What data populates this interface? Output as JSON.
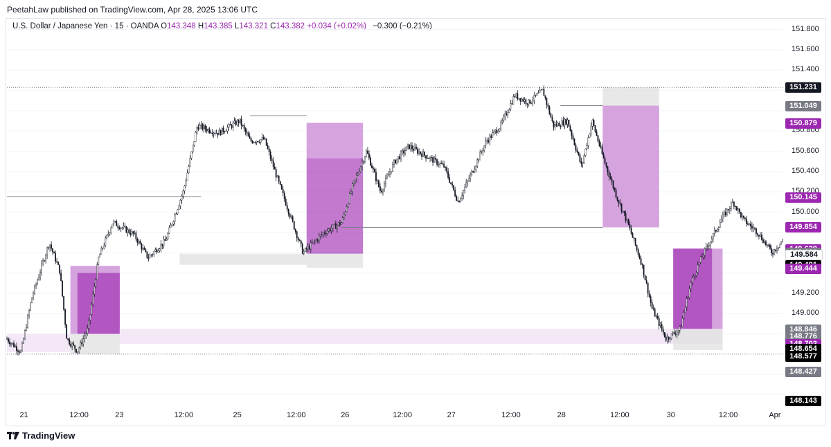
{
  "header": {
    "publisher": "PeetahLaw published on TradingView.com, Apr 28, 2025 13:06 UTC"
  },
  "legend": {
    "symbol": "U.S. Dollar / Japanese Yen · 15 · OANDA",
    "open_label": "O",
    "open": "143.348",
    "high_label": "H",
    "high": "143.385",
    "low_label": "L",
    "low": "143.321",
    "close_label": "C",
    "close": "143.382",
    "change": "+0.034 (+0.02%)",
    "change2": "−0.300 (−0.21%)"
  },
  "footer": {
    "brand": "TradingView",
    "brand_icon": "tradingview-logo-icon"
  },
  "colors": {
    "candle": "#131722",
    "purple": "#9c27b0",
    "purple_light": "#ce93d8",
    "gray_zone": "#e0e0e0",
    "grid": "#f0f3fa"
  },
  "chart_data": {
    "type": "candlestick",
    "ylim": [
      148.08,
      151.9
    ],
    "price_ticks": [
      "151.800",
      "151.600",
      "151.400",
      "150.800",
      "150.600",
      "150.400",
      "150.200",
      "150.000",
      "149.200",
      "149.000"
    ],
    "date_ticks": [
      "21",
      "12:00",
      "23",
      "12:00",
      "25",
      "12:00",
      "26",
      "12:00",
      "27",
      "12:00",
      "28",
      "12:00",
      "30",
      "12:00",
      "Apr"
    ],
    "price_badges": [
      {
        "value": "151.231",
        "color": "#131722"
      },
      {
        "value": "151.049",
        "color": "#787b86"
      },
      {
        "value": "150.879",
        "color": "#9c27b0"
      },
      {
        "value": "150.145",
        "color": "#9c27b0"
      },
      {
        "value": "149.854",
        "color": "#9c27b0"
      },
      {
        "value": "149.638",
        "color": "#9c27b0"
      },
      {
        "value": "149.603",
        "color": "#787b86"
      },
      {
        "value": "149.584",
        "color": "#ffffff",
        "text": "#131722"
      },
      {
        "value": "149.481",
        "color": "#000000"
      },
      {
        "value": "149.444",
        "color": "#9c27b0"
      },
      {
        "value": "148.846",
        "color": "#787b86"
      },
      {
        "value": "148.776",
        "color": "#787b86"
      },
      {
        "value": "148.702",
        "color": "#9c27b0"
      },
      {
        "value": "148.654",
        "color": "#000000"
      },
      {
        "value": "148.577",
        "color": "#000000"
      },
      {
        "value": "148.427",
        "color": "#787b86"
      },
      {
        "value": "148.143",
        "color": "#000000"
      }
    ],
    "price_path": [
      [
        0,
        148.75
      ],
      [
        0.02,
        148.62
      ],
      [
        0.035,
        149.15
      ],
      [
        0.06,
        149.7
      ],
      [
        0.075,
        149.42
      ],
      [
        0.085,
        148.75
      ],
      [
        0.1,
        148.63
      ],
      [
        0.115,
        148.85
      ],
      [
        0.13,
        149.55
      ],
      [
        0.15,
        149.9
      ],
      [
        0.18,
        149.78
      ],
      [
        0.2,
        149.55
      ],
      [
        0.225,
        149.72
      ],
      [
        0.25,
        150.2
      ],
      [
        0.27,
        150.85
      ],
      [
        0.3,
        150.78
      ],
      [
        0.33,
        150.9
      ],
      [
        0.345,
        150.7
      ],
      [
        0.365,
        150.72
      ],
      [
        0.385,
        150.3
      ],
      [
        0.405,
        149.9
      ],
      [
        0.42,
        149.6
      ],
      [
        0.45,
        149.8
      ],
      [
        0.475,
        149.9
      ],
      [
        0.49,
        150.25
      ],
      [
        0.51,
        150.6
      ],
      [
        0.53,
        150.2
      ],
      [
        0.55,
        150.5
      ],
      [
        0.57,
        150.65
      ],
      [
        0.595,
        150.55
      ],
      [
        0.62,
        150.45
      ],
      [
        0.64,
        150.1
      ],
      [
        0.66,
        150.4
      ],
      [
        0.68,
        150.7
      ],
      [
        0.7,
        150.85
      ],
      [
        0.72,
        151.15
      ],
      [
        0.74,
        151.08
      ],
      [
        0.76,
        151.2
      ],
      [
        0.775,
        150.85
      ],
      [
        0.795,
        150.9
      ],
      [
        0.815,
        150.45
      ],
      [
        0.83,
        150.9
      ],
      [
        0.845,
        150.55
      ],
      [
        0.865,
        150.15
      ],
      [
        0.88,
        149.9
      ],
      [
        0.9,
        149.5
      ],
      [
        0.915,
        149.05
      ],
      [
        0.935,
        148.75
      ],
      [
        0.955,
        148.85
      ],
      [
        0.97,
        149.3
      ],
      [
        0.985,
        149.55
      ],
      [
        1.0,
        149.75
      ],
      [
        1.015,
        149.95
      ],
      [
        1.03,
        150.1
      ],
      [
        1.045,
        149.92
      ],
      [
        1.065,
        149.8
      ],
      [
        1.085,
        149.6
      ],
      [
        1.1,
        149.72
      ]
    ],
    "horizontal_lines": [
      {
        "y": 151.23,
        "x0": 0.0,
        "x1": 1.1,
        "style": "dotted"
      },
      {
        "y": 148.6,
        "x0": 0.0,
        "x1": 1.1,
        "style": "dotted"
      },
      {
        "y": 150.15,
        "x0": 0.0,
        "x1": 0.275,
        "style": "solid"
      },
      {
        "y": 150.95,
        "x0": 0.345,
        "x1": 0.425,
        "style": "solid"
      },
      {
        "y": 149.85,
        "x0": 0.475,
        "x1": 0.845,
        "style": "solid"
      },
      {
        "y": 151.05,
        "x0": 0.785,
        "x1": 0.845,
        "style": "solid"
      }
    ],
    "zones": [
      {
        "x0": 0.0,
        "x1": 0.09,
        "y0": 148.62,
        "y1": 148.8,
        "kind": "light"
      },
      {
        "x0": 0.09,
        "x1": 0.16,
        "y0": 148.6,
        "y1": 148.8,
        "kind": "gray"
      },
      {
        "x0": 0.09,
        "x1": 0.16,
        "y0": 148.8,
        "y1": 149.47,
        "kind": "mid"
      },
      {
        "x0": 0.1,
        "x1": 0.16,
        "y0": 148.8,
        "y1": 149.4,
        "kind": "dark"
      },
      {
        "x0": 0.16,
        "x1": 1.015,
        "y0": 148.7,
        "y1": 148.85,
        "kind": "light"
      },
      {
        "x0": 0.245,
        "x1": 0.425,
        "y0": 149.48,
        "y1": 149.59,
        "kind": "gray"
      },
      {
        "x0": 0.425,
        "x1": 0.505,
        "y0": 149.45,
        "y1": 149.59,
        "kind": "gray"
      },
      {
        "x0": 0.425,
        "x1": 0.505,
        "y0": 150.53,
        "y1": 150.88,
        "kind": "mid"
      },
      {
        "x0": 0.425,
        "x1": 0.505,
        "y0": 149.59,
        "y1": 150.53,
        "kind": "dark"
      },
      {
        "x0": 0.845,
        "x1": 0.925,
        "y0": 151.05,
        "y1": 151.23,
        "kind": "gray"
      },
      {
        "x0": 0.845,
        "x1": 0.925,
        "y0": 149.85,
        "y1": 151.05,
        "kind": "mid"
      },
      {
        "x0": 0.945,
        "x1": 1.015,
        "y0": 148.64,
        "y1": 148.85,
        "kind": "gray"
      },
      {
        "x0": 0.945,
        "x1": 1.015,
        "y0": 148.85,
        "y1": 149.64,
        "kind": "mid"
      },
      {
        "x0": 0.945,
        "x1": 1.0,
        "y0": 148.85,
        "y1": 149.64,
        "kind": "dark"
      }
    ]
  }
}
